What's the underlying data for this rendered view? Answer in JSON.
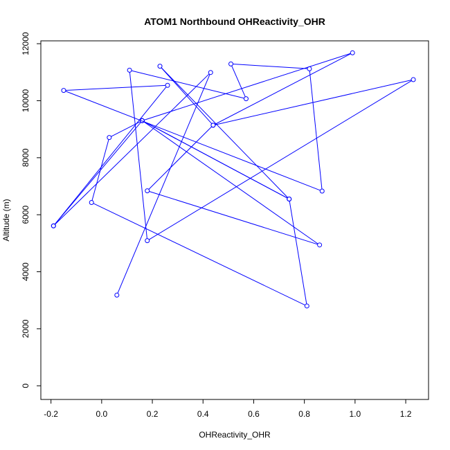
{
  "chart_data": {
    "type": "line",
    "title": "ATOM1 Northbound OHReactivity_OHR",
    "xlabel": "OHReactivity_OHR",
    "ylabel": "Altitude (m)",
    "xlim": [
      -0.24,
      1.29
    ],
    "ylim": [
      -480,
      12100
    ],
    "xticks": [
      -0.2,
      0.0,
      0.2,
      0.4,
      0.6,
      0.8,
      1.0,
      1.2
    ],
    "xtick_labels": [
      "-0.2",
      "0.0",
      "0.2",
      "0.4",
      "0.6",
      "0.8",
      "1.0",
      "1.2"
    ],
    "yticks": [
      0,
      2000,
      4000,
      6000,
      8000,
      10000,
      12000
    ],
    "ytick_labels": [
      "0",
      "2000",
      "4000",
      "6000",
      "8000",
      "10000",
      "12000"
    ],
    "grid": false,
    "color": "#0000ff",
    "marker": "open-circle",
    "points": [
      {
        "x": 0.06,
        "y": 3180
      },
      {
        "x": 0.43,
        "y": 10990
      },
      {
        "x": -0.19,
        "y": 5610
      },
      {
        "x": 0.26,
        "y": 10540
      },
      {
        "x": -0.15,
        "y": 10360
      },
      {
        "x": 0.87,
        "y": 6830
      },
      {
        "x": 0.82,
        "y": 11120
      },
      {
        "x": 0.51,
        "y": 11290
      },
      {
        "x": 0.57,
        "y": 10070
      },
      {
        "x": 0.11,
        "y": 11070
      },
      {
        "x": 0.18,
        "y": 5090
      },
      {
        "x": 1.23,
        "y": 10740
      },
      {
        "x": 0.44,
        "y": 9140
      },
      {
        "x": 0.99,
        "y": 11680
      },
      {
        "x": 0.16,
        "y": 9300
      },
      {
        "x": 0.86,
        "y": 4940
      },
      {
        "x": 0.18,
        "y": 6840
      },
      {
        "x": 0.44,
        "y": 9140
      },
      {
        "x": 0.23,
        "y": 11210
      },
      {
        "x": 0.74,
        "y": 6550
      },
      {
        "x": 0.81,
        "y": 2800
      },
      {
        "x": -0.04,
        "y": 6430
      },
      {
        "x": 0.03,
        "y": 8710
      },
      {
        "x": 0.16,
        "y": 9300
      },
      {
        "x": 0.74,
        "y": 6550
      },
      {
        "x": 0.16,
        "y": 9300
      },
      {
        "x": -0.19,
        "y": 5610
      }
    ]
  }
}
